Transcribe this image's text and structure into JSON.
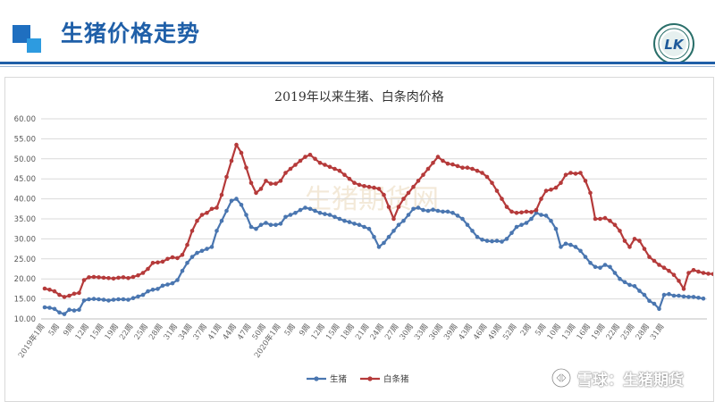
{
  "header": {
    "title": "生猪价格走势",
    "logo_letter": "LK"
  },
  "watermark": {
    "center": "生猪期货网",
    "overlay": "雪球：生猪期货"
  },
  "colors": {
    "accent": "#1f5fa8",
    "series_live_hog": "#4a76b0",
    "series_white_pig": "#b53a3a"
  },
  "chart_data": {
    "type": "line",
    "title": "2019年以来生猪、白条肉价格",
    "xlabel": "",
    "ylabel": "",
    "ylim": [
      10,
      60
    ],
    "yticks": [
      "10.00",
      "15.00",
      "20.00",
      "25.00",
      "30.00",
      "35.00",
      "40.00",
      "45.00",
      "50.00",
      "55.00",
      "60.00"
    ],
    "grid": true,
    "legend_position": "bottom-center",
    "x_tick_labels": [
      "2019年1周",
      "5周",
      "9周",
      "12周",
      "15周",
      "19周",
      "22周",
      "25周",
      "28周",
      "31周",
      "34周",
      "37周",
      "41周",
      "44周",
      "47周",
      "50周",
      "2020年1周",
      "5周",
      "9周",
      "12周",
      "15周",
      "18周",
      "21周",
      "24周",
      "27周",
      "30周",
      "33周",
      "36周",
      "39周",
      "43周",
      "46周",
      "49周",
      "52周",
      "2周",
      "5周",
      "10周",
      "13周",
      "16周",
      "19周",
      "22周",
      "25周",
      "28周",
      "31周"
    ],
    "series": [
      {
        "name": "生猪",
        "values": [
          12.9,
          12.8,
          12.5,
          11.6,
          11.2,
          12.3,
          12.1,
          12.3,
          14.6,
          14.9,
          15.0,
          14.9,
          14.8,
          14.6,
          14.8,
          14.9,
          14.9,
          14.8,
          15.2,
          15.6,
          16.0,
          16.9,
          17.3,
          17.5,
          18.3,
          18.6,
          18.9,
          19.7,
          22.0,
          24.0,
          25.5,
          26.5,
          27.0,
          27.5,
          28.0,
          32.0,
          34.5,
          37.0,
          39.5,
          40.0,
          38.5,
          36.0,
          33.0,
          32.5,
          33.5,
          34.0,
          33.5,
          33.5,
          33.8,
          35.5,
          36.0,
          36.5,
          37.2,
          37.8,
          37.5,
          37.0,
          36.5,
          36.2,
          36.0,
          35.5,
          35.0,
          34.5,
          34.2,
          33.8,
          33.5,
          33.0,
          32.5,
          30.5,
          28.0,
          29.0,
          30.5,
          32.0,
          33.5,
          34.5,
          36.0,
          37.5,
          37.8,
          37.2,
          37.0,
          37.3,
          37.0,
          36.8,
          36.8,
          36.5,
          35.8,
          35.0,
          33.5,
          32.0,
          30.5,
          29.8,
          29.5,
          29.4,
          29.5,
          29.3,
          30.0,
          31.5,
          33.0,
          33.5,
          34.0,
          35.0,
          36.5,
          36.0,
          35.8,
          34.5,
          32.5,
          28.0,
          28.8,
          28.5,
          28.0,
          27.0,
          25.5,
          24.0,
          23.0,
          22.8,
          23.5,
          23.0,
          21.5,
          20.0,
          19.2,
          18.5,
          18.2,
          17.0,
          16.0,
          14.5,
          13.8,
          12.5,
          16.0,
          16.2,
          15.8,
          15.8,
          15.6,
          15.5,
          15.5,
          15.3,
          15.1
        ]
      },
      {
        "name": "白条猪",
        "values": [
          17.6,
          17.3,
          16.9,
          16.0,
          15.5,
          15.8,
          16.3,
          16.5,
          19.7,
          20.4,
          20.5,
          20.4,
          20.3,
          20.2,
          20.1,
          20.3,
          20.4,
          20.2,
          20.5,
          20.9,
          21.5,
          22.5,
          24.0,
          24.1,
          24.3,
          25.0,
          25.4,
          25.2,
          26.0,
          28.5,
          32.0,
          34.5,
          36.0,
          36.5,
          37.5,
          37.8,
          41.0,
          45.5,
          49.5,
          53.5,
          51.5,
          47.8,
          44.0,
          41.5,
          42.5,
          44.5,
          43.8,
          43.8,
          44.5,
          46.5,
          47.5,
          48.5,
          49.5,
          50.5,
          51.0,
          50.0,
          49.0,
          48.5,
          48.0,
          47.5,
          47.0,
          46.0,
          45.0,
          44.0,
          43.5,
          43.2,
          43.0,
          42.8,
          42.5,
          41.0,
          38.0,
          35.0,
          38.0,
          40.0,
          41.5,
          43.0,
          44.5,
          46.0,
          47.5,
          49.0,
          50.5,
          49.5,
          48.8,
          48.6,
          48.2,
          47.8,
          47.8,
          47.5,
          47.0,
          46.5,
          45.5,
          44.0,
          42.0,
          40.0,
          38.0,
          36.8,
          36.5,
          36.6,
          36.8,
          36.7,
          37.2,
          40.0,
          42.0,
          42.3,
          42.8,
          44.0,
          46.0,
          46.5,
          46.3,
          46.5,
          44.5,
          41.5,
          35.0,
          35.0,
          35.2,
          34.5,
          33.5,
          32.0,
          29.5,
          28.0,
          30.0,
          29.5,
          27.5,
          25.5,
          24.5,
          23.5,
          22.8,
          22.0,
          21.0,
          19.5,
          17.5,
          21.5,
          22.2,
          21.8,
          21.5,
          21.3,
          21.2,
          21.0,
          20.8
        ]
      }
    ]
  }
}
